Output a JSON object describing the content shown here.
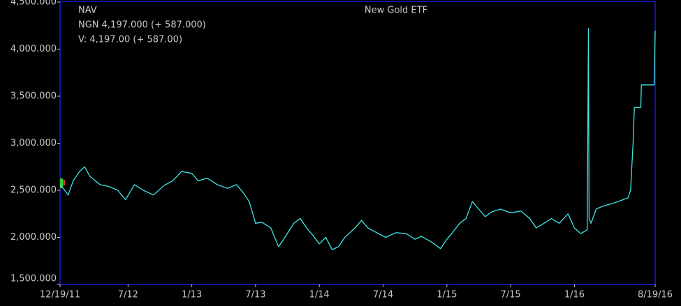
{
  "chart_data": {
    "type": "line",
    "title": "New Gold ETF",
    "annotations": [
      "NGN 4,197.000 (+ 587.000)",
      "V: 4,197.00 (+ 587.00)"
    ],
    "series": [
      {
        "name": "NAV",
        "color": "#3fe6e6",
        "x": [
          2011.97,
          2012.03,
          2012.07,
          2012.12,
          2012.16,
          2012.2,
          2012.28,
          2012.35,
          2012.42,
          2012.48,
          2012.55,
          2012.62,
          2012.7,
          2012.78,
          2012.85,
          2012.92,
          2013.0,
          2013.05,
          2013.12,
          2013.2,
          2013.28,
          2013.35,
          2013.4,
          2013.45,
          2013.5,
          2013.55,
          2013.62,
          2013.68,
          2013.73,
          2013.8,
          2013.85,
          2013.9,
          2013.95,
          2014.0,
          2014.05,
          2014.1,
          2014.15,
          2014.2,
          2014.28,
          2014.33,
          2014.38,
          2014.45,
          2014.52,
          2014.6,
          2014.68,
          2014.75,
          2014.8,
          2014.88,
          2014.95,
          2015.0,
          2015.05,
          2015.1,
          2015.15,
          2015.2,
          2015.25,
          2015.3,
          2015.35,
          2015.42,
          2015.5,
          2015.58,
          2015.65,
          2015.7,
          2015.75,
          2015.82,
          2015.88,
          2015.95,
          2016.0,
          2016.05,
          2016.1,
          2016.11,
          2016.115,
          2016.13,
          2016.17,
          2016.22,
          2016.3,
          2016.38,
          2016.42,
          2016.44,
          2016.46,
          2016.47,
          2016.52,
          2016.525,
          2016.625,
          2016.633
        ],
        "values": [
          2560,
          2450,
          2600,
          2700,
          2750,
          2650,
          2560,
          2540,
          2500,
          2400,
          2560,
          2500,
          2450,
          2550,
          2600,
          2700,
          2680,
          2600,
          2630,
          2560,
          2520,
          2560,
          2480,
          2380,
          2150,
          2160,
          2100,
          1900,
          2000,
          2150,
          2200,
          2100,
          2020,
          1930,
          2000,
          1870,
          1900,
          2000,
          2100,
          2180,
          2100,
          2050,
          2000,
          2050,
          2040,
          1980,
          2010,
          1950,
          1880,
          1980,
          2060,
          2150,
          2200,
          2380,
          2300,
          2220,
          2270,
          2300,
          2260,
          2280,
          2200,
          2100,
          2140,
          2200,
          2150,
          2250,
          2100,
          2040,
          2080,
          4220,
          2200,
          2150,
          2300,
          2330,
          2360,
          2400,
          2420,
          2500,
          3000,
          3380,
          3380,
          3620,
          3620,
          4197
        ]
      }
    ],
    "xlim": [
      2011.967,
      2016.633
    ],
    "xticks": [
      {
        "value": 2011.967,
        "label": "12/19/11"
      },
      {
        "value": 2012.5,
        "label": "7/12"
      },
      {
        "value": 2013.0,
        "label": "1/13"
      },
      {
        "value": 2013.5,
        "label": "7/13"
      },
      {
        "value": 2014.0,
        "label": "1/14"
      },
      {
        "value": 2014.5,
        "label": "7/14"
      },
      {
        "value": 2015.0,
        "label": "1/15"
      },
      {
        "value": 2015.5,
        "label": "7/15"
      },
      {
        "value": 2016.0,
        "label": "1/16"
      },
      {
        "value": 2016.633,
        "label": "8/19/16"
      }
    ],
    "ylim": [
      1500,
      4500
    ],
    "yticks": [
      {
        "value": 1500,
        "label": "1,500.000"
      },
      {
        "value": 2000,
        "label": "2,000.000"
      },
      {
        "value": 2500,
        "label": "2,500.000"
      },
      {
        "value": 3000,
        "label": "3,000.000"
      },
      {
        "value": 3500,
        "label": "3,500.000"
      },
      {
        "value": 4000,
        "label": "4,000.000"
      },
      {
        "value": 4500,
        "label": "4,500.000"
      }
    ]
  }
}
